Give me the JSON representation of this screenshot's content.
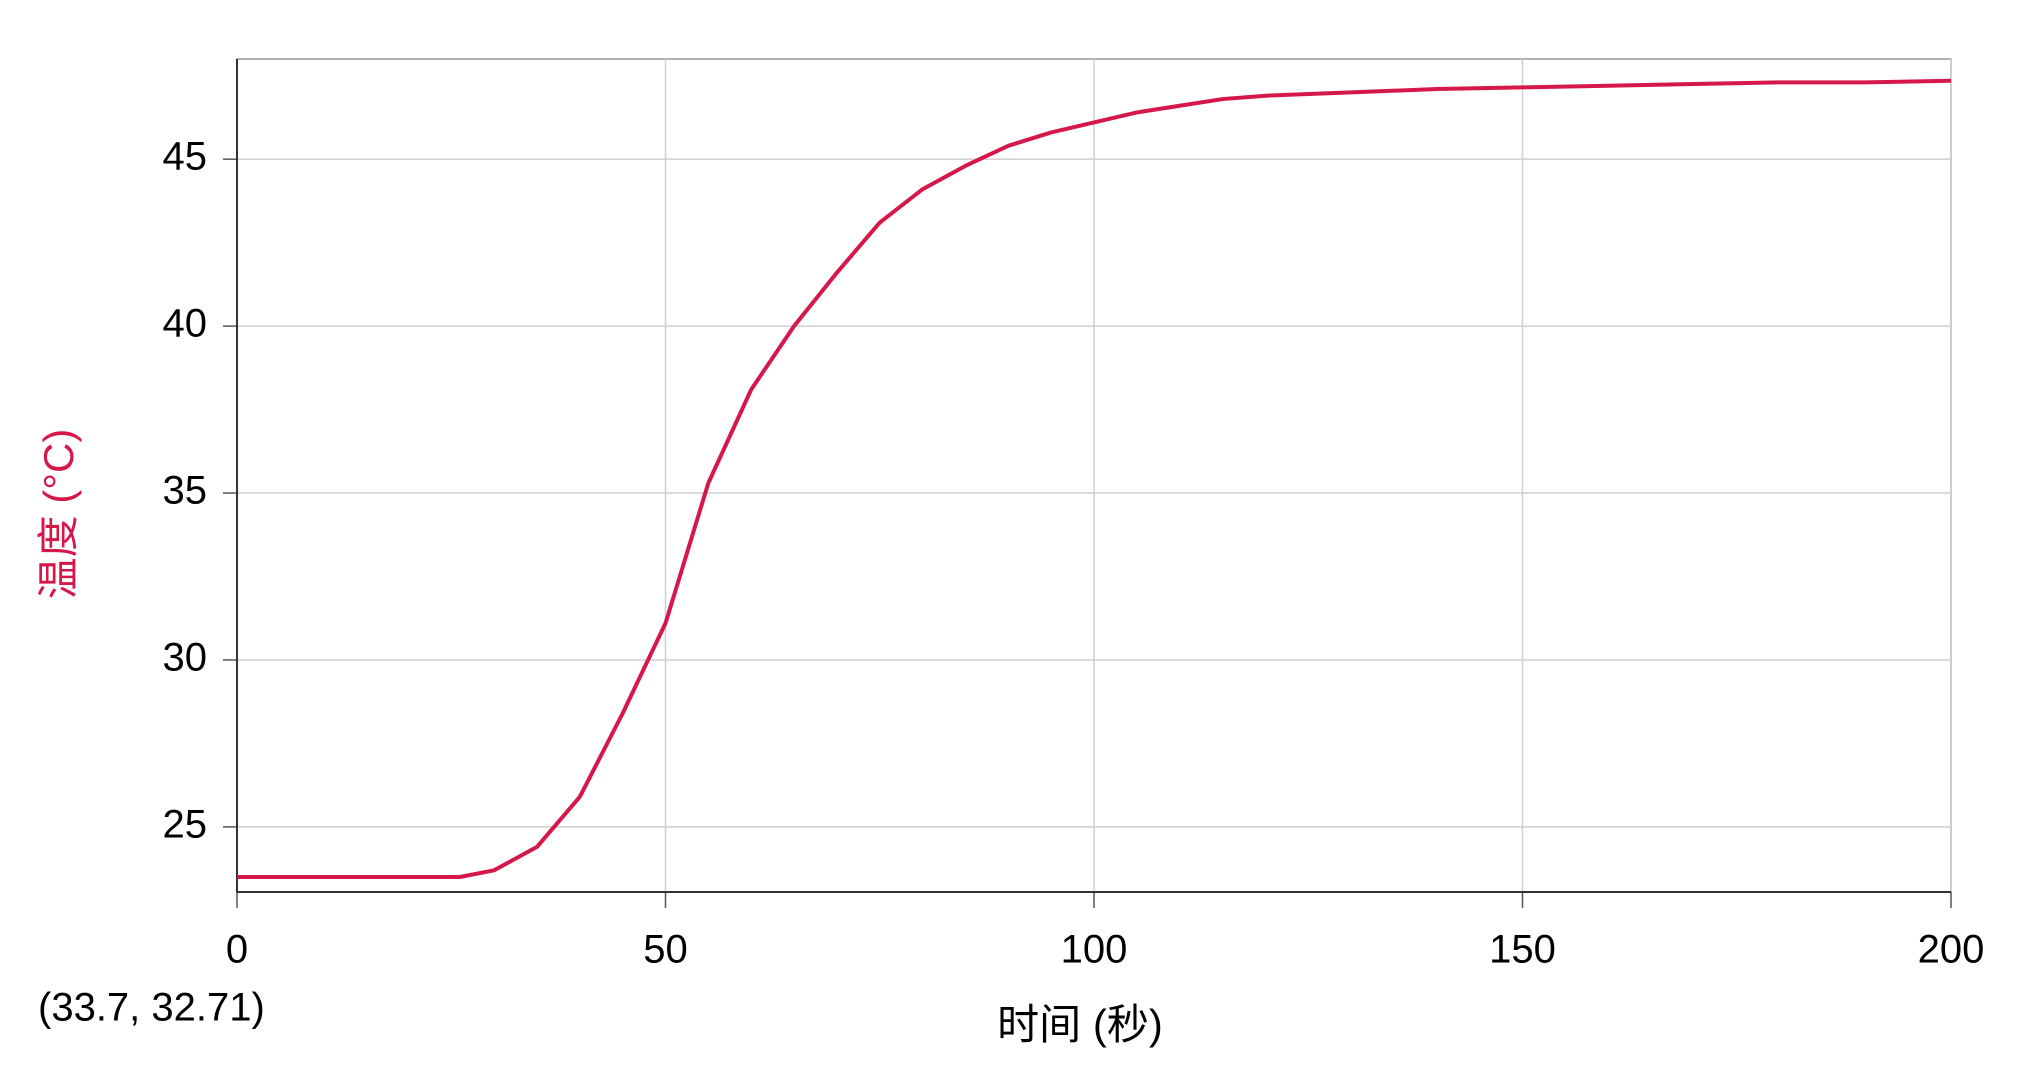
{
  "chart_data": {
    "type": "line",
    "xlabel": "时间 (秒)",
    "ylabel": "温度 (°C)",
    "annotation": "(33.7, 32.71)",
    "x": [
      0,
      10,
      20,
      26,
      30,
      35,
      40,
      45,
      50,
      55,
      60,
      65,
      70,
      75,
      80,
      85,
      90,
      95,
      100,
      105,
      110,
      115,
      120,
      130,
      140,
      150,
      160,
      170,
      180,
      190,
      200
    ],
    "values": [
      23.5,
      23.5,
      23.5,
      23.5,
      23.7,
      24.4,
      25.9,
      28.4,
      31.1,
      35.3,
      38.1,
      40.0,
      41.6,
      43.1,
      44.1,
      44.8,
      45.4,
      45.8,
      46.1,
      46.4,
      46.6,
      46.8,
      46.9,
      47.0,
      47.1,
      47.15,
      47.2,
      47.25,
      47.3,
      47.3,
      47.35
    ],
    "color": "#d6174a",
    "xlim": [
      0,
      200
    ],
    "xticks": [
      0,
      50,
      100,
      150,
      200
    ],
    "ylim": [
      23.05,
      48
    ],
    "yticks": [
      25,
      30,
      35,
      40,
      45
    ],
    "grid": true
  }
}
